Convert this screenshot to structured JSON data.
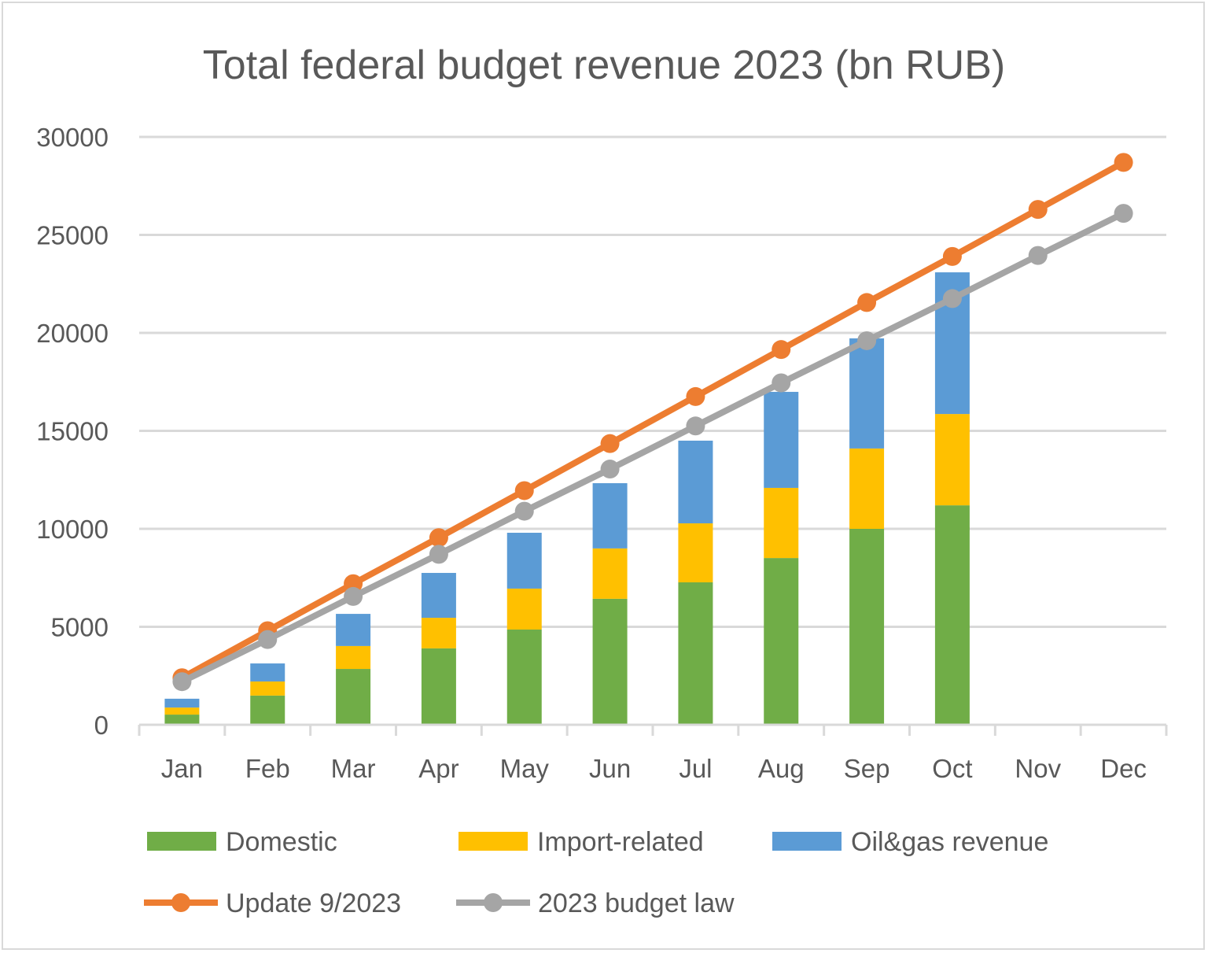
{
  "chart_data": {
    "type": "bar",
    "title": "Total federal budget revenue 2023 (bn RUB)",
    "xlabel": "",
    "ylabel": "",
    "ylim": [
      0,
      30000
    ],
    "yticks": [
      0,
      5000,
      10000,
      15000,
      20000,
      25000,
      30000
    ],
    "grid": true,
    "legend_position": "bottom",
    "categories": [
      "Jan",
      "Feb",
      "Mar",
      "Apr",
      "May",
      "Jun",
      "Jul",
      "Aug",
      "Sep",
      "Oct",
      "Nov",
      "Dec"
    ],
    "stacked_series": [
      {
        "name": "Domestic",
        "color": "#70ad47",
        "values": [
          520,
          1490,
          2850,
          3900,
          4860,
          6430,
          7270,
          8510,
          10000,
          11200,
          null,
          null
        ]
      },
      {
        "name": "Import-related",
        "color": "#ffc000",
        "values": [
          360,
          720,
          1170,
          1560,
          2090,
          2570,
          3010,
          3580,
          4100,
          4660,
          null,
          null
        ]
      },
      {
        "name": "Oil&gas revenue",
        "color": "#5b9bd5",
        "values": [
          450,
          920,
          1640,
          2290,
          2850,
          3330,
          4220,
          4900,
          5620,
          7230,
          null,
          null
        ]
      }
    ],
    "line_series": [
      {
        "name": "Update 9/2023",
        "color": "#ed7d31",
        "values": [
          2400,
          4800,
          7200,
          9550,
          11950,
          14350,
          16750,
          19150,
          21550,
          23900,
          26300,
          28700
        ]
      },
      {
        "name": "2023 budget law",
        "color": "#a5a5a5",
        "values": [
          2200,
          4350,
          6550,
          8700,
          10900,
          13050,
          15250,
          17450,
          19600,
          21750,
          23950,
          26100
        ]
      }
    ]
  }
}
